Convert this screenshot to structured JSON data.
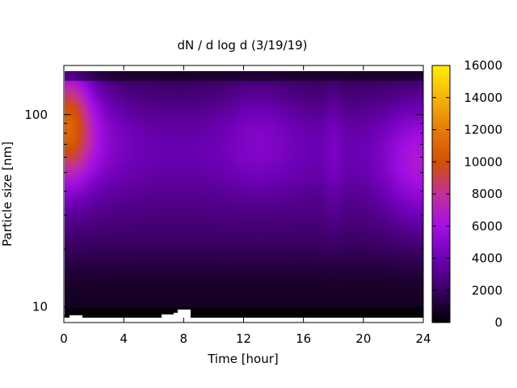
{
  "chart_data": {
    "type": "heatmap",
    "title": "dN / d log d (3/19/19)",
    "xlabel": "Time [hour]",
    "ylabel": "Particle size [nm]",
    "xlim": [
      0,
      24
    ],
    "ylim": [
      8.3,
      180
    ],
    "yscale": "log",
    "x_ticks": [
      0,
      4,
      8,
      12,
      16,
      20,
      24
    ],
    "y_ticks": [
      10,
      100
    ],
    "colorbar": {
      "range": [
        0,
        16000
      ],
      "ticks": [
        0,
        2000,
        4000,
        6000,
        8000,
        10000,
        12000,
        14000,
        16000
      ],
      "palette": "gnuplot black-purple-red-orange-yellow"
    },
    "features": [
      {
        "x_hour": 0.2,
        "diameter_nm": 95,
        "value": 10000
      },
      {
        "x_hour": 2.0,
        "diameter_nm": 85,
        "value": 4500
      },
      {
        "x_hour": 13.0,
        "diameter_nm": 85,
        "value": 4300
      },
      {
        "x_hour": 23.8,
        "diameter_nm": 55,
        "value": 6000
      }
    ]
  }
}
